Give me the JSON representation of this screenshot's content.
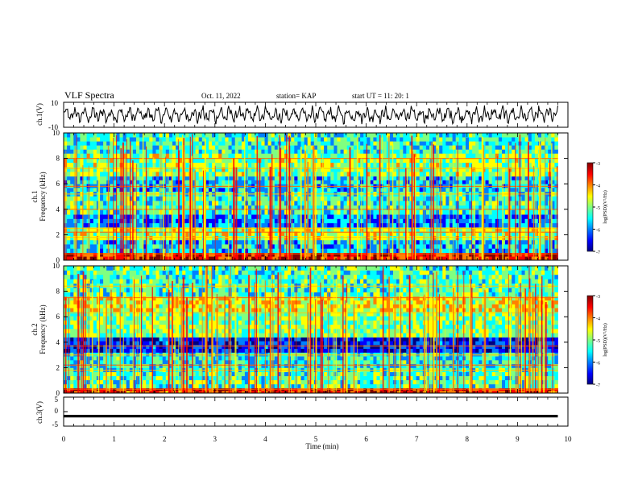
{
  "header": {
    "title": "VLF Spectra",
    "date": "Oct. 11, 2022",
    "station": "station= KAP",
    "start": "start  UT =   11: 20: 1"
  },
  "chart_data": [
    {
      "type": "line",
      "panel": "ch1-waveform",
      "ylabel": "ch.1(V)",
      "ylim": [
        -10,
        10
      ],
      "yticks": [
        "10",
        "-10"
      ],
      "xlim": [
        0,
        10
      ],
      "series": [
        {
          "x": [
            0,
            0.5,
            1,
            1.5,
            2,
            2.5,
            3,
            3.5,
            4,
            4.5,
            5,
            5.5,
            6,
            6.5,
            7,
            7.5,
            8,
            8.5,
            9,
            9.5,
            9.8
          ],
          "values": [
            2,
            1,
            -1,
            2,
            0,
            1,
            -2,
            1,
            0,
            2,
            -1,
            1,
            0,
            -3,
            2,
            1,
            0,
            -1,
            2,
            1,
            -1
          ],
          "envelope": [
            7,
            -7
          ]
        }
      ]
    },
    {
      "type": "heatmap",
      "panel": "ch1-spectrogram",
      "ylabel": "ch.1\nFrequency  (kHz)",
      "ylim": [
        0,
        10
      ],
      "yticks": [
        "0",
        "2",
        "4",
        "6",
        "8",
        "10"
      ],
      "xlim": [
        0,
        10
      ],
      "data_end_min": 9.8,
      "colorbar": {
        "label": "log(PSD)(V²/Hz)",
        "range": [
          -7,
          -3
        ],
        "ticks": [
          "-3",
          "-4",
          "-5",
          "-6",
          "-7"
        ],
        "colormap": [
          "#00007f",
          "#0000ff",
          "#0080ff",
          "#00ffff",
          "#80ff80",
          "#ffff00",
          "#ff8000",
          "#ff0000",
          "#7f0000"
        ]
      },
      "bands": [
        {
          "f_lo": 0,
          "f_hi": 0.6,
          "level": -3.6
        },
        {
          "f_lo": 0.6,
          "f_hi": 1.6,
          "level": -5.6
        },
        {
          "f_lo": 1.6,
          "f_hi": 2.6,
          "level": -4.8
        },
        {
          "f_lo": 2.6,
          "f_hi": 3.6,
          "level": -5.9
        },
        {
          "f_lo": 3.6,
          "f_hi": 5.4,
          "level": -5.3
        },
        {
          "f_lo": 5.4,
          "f_hi": 6.6,
          "level": -5.6
        },
        {
          "f_lo": 6.6,
          "f_hi": 8.4,
          "level": -4.9
        },
        {
          "f_lo": 8.4,
          "f_hi": 10,
          "level": -5.3
        }
      ],
      "tones_khz": [
        0.5,
        1.8,
        2.2,
        2.5,
        4.0,
        5.2,
        5.8,
        7.2,
        8.0
      ]
    },
    {
      "type": "heatmap",
      "panel": "ch2-spectrogram",
      "ylabel": "ch.2\nFrequency  (kHz)",
      "ylim": [
        0,
        10
      ],
      "yticks": [
        "0",
        "2",
        "4",
        "6",
        "8",
        "10"
      ],
      "xlim": [
        0,
        10
      ],
      "data_end_min": 9.8,
      "colorbar": {
        "label": "log(PSD)(V²/Hz)",
        "range": [
          -7,
          -3
        ],
        "ticks": [
          "-3",
          "-4",
          "-5",
          "-6",
          "-7"
        ],
        "colormap": [
          "#00007f",
          "#0000ff",
          "#0080ff",
          "#00ffff",
          "#80ff80",
          "#ffff00",
          "#ff8000",
          "#ff0000",
          "#7f0000"
        ]
      },
      "bands": [
        {
          "f_lo": 0,
          "f_hi": 0.4,
          "level": -3.7
        },
        {
          "f_lo": 0.4,
          "f_hi": 2.0,
          "level": -5.2
        },
        {
          "f_lo": 2.0,
          "f_hi": 3.2,
          "level": -5.4
        },
        {
          "f_lo": 3.2,
          "f_hi": 4.4,
          "level": -6.3
        },
        {
          "f_lo": 4.4,
          "f_hi": 6.4,
          "level": -5.0
        },
        {
          "f_lo": 6.4,
          "f_hi": 7.6,
          "level": -4.6
        },
        {
          "f_lo": 7.6,
          "f_hi": 10,
          "level": -5.2
        }
      ],
      "tones_khz": [
        0.3,
        1.8,
        2.2,
        3.0,
        3.7,
        6.3,
        7.5,
        8.4
      ]
    },
    {
      "type": "line",
      "panel": "ch3-waveform",
      "ylabel": "ch.3(V)",
      "ylim": [
        -5,
        5
      ],
      "yticks": [
        "5",
        "0",
        "-5"
      ],
      "xlim": [
        0,
        10
      ],
      "series": [
        {
          "x": [
            0,
            9.8
          ],
          "values": [
            -1.5,
            -1.5
          ],
          "band": [
            -1.1,
            -2.0
          ]
        }
      ]
    }
  ],
  "xaxis": {
    "label": "Time  (min)",
    "ticks": [
      "0",
      "1",
      "2",
      "3",
      "4",
      "5",
      "6",
      "7",
      "8",
      "9",
      "10"
    ]
  }
}
